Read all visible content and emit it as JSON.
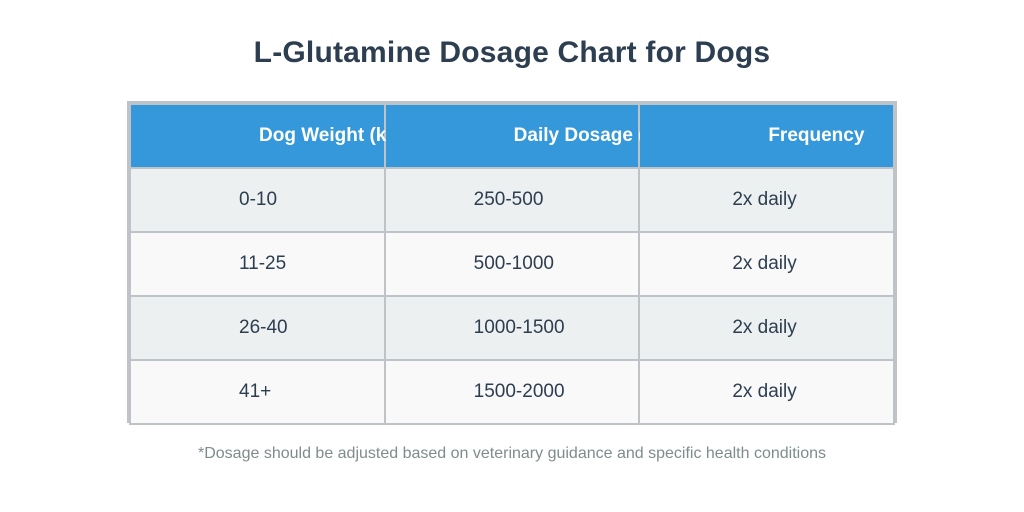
{
  "title": "L-Glutamine Dosage Chart for Dogs",
  "table": {
    "headers": [
      "Dog Weight (kg)",
      "Daily Dosage (mg)",
      "Frequency"
    ],
    "rows": [
      [
        "0-10",
        "250-500",
        "2x daily"
      ],
      [
        "11-25",
        "500-1000",
        "2x daily"
      ],
      [
        "26-40",
        "1000-1500",
        "2x daily"
      ],
      [
        "41+",
        "1500-2000",
        "2x daily"
      ]
    ]
  },
  "footnote": "*Dosage should be adjusted based on veterinary guidance and specific health conditions",
  "colors": {
    "header_bg": "#3498db",
    "header_text": "#ffffff",
    "row_alt_bg": "#ecf0f1",
    "row_plain_bg": "#f9f9f9",
    "border": "#bdc3c7",
    "title_text": "#2c3e50",
    "footnote_text": "#7f8c8d"
  }
}
